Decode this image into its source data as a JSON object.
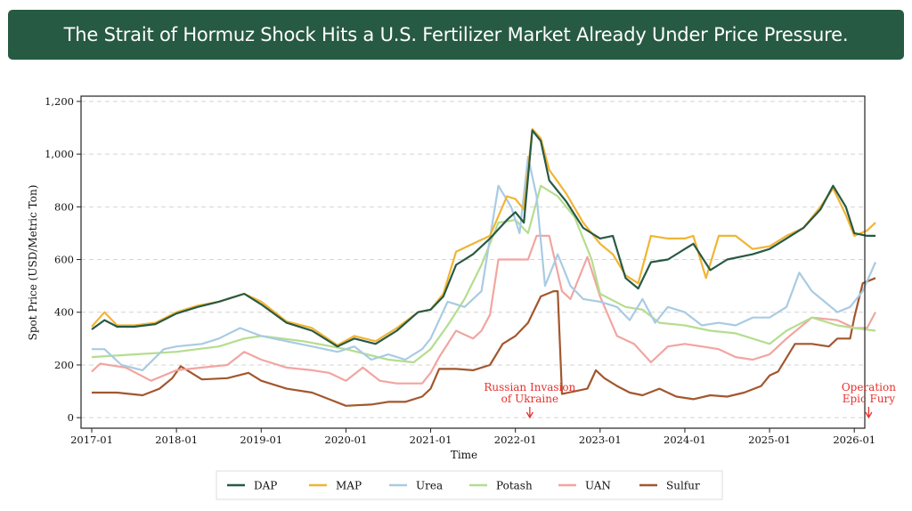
{
  "title": "The Strait of Hormuz Shock Hits a U.S. Fertilizer Market Already Under Price Pressure.",
  "chart_data": {
    "type": "line",
    "title": "The Strait of Hormuz Shock Hits a U.S. Fertilizer Market Already Under Price Pressure.",
    "xlabel": "Time",
    "ylabel": "Spot Price (USD/Metric Ton)",
    "xlim": [
      2017.0,
      2026.25
    ],
    "ylim": [
      -40,
      1220
    ],
    "yticks": [
      0,
      200,
      400,
      600,
      800,
      1000,
      1200
    ],
    "ytick_labels": [
      "0",
      "200",
      "400",
      "600",
      "800",
      "1,000",
      "1,200"
    ],
    "xticks": [
      2017,
      2018,
      2019,
      2020,
      2021,
      2022,
      2023,
      2024,
      2025,
      2026
    ],
    "xtick_labels": [
      "2017-01",
      "2018-01",
      "2019-01",
      "2020-01",
      "2021-01",
      "2022-01",
      "2023-01",
      "2024-01",
      "2025-01",
      "2026-01"
    ],
    "grid": "horizontal-dashed",
    "legend_position": "bottom-center",
    "annotations": [
      {
        "text": [
          "Russian Invasion",
          "of Ukraine"
        ],
        "x": 2022.17,
        "color": "#e8302b"
      },
      {
        "text": [
          "Operation",
          "Epic Fury"
        ],
        "x": 2026.17,
        "color": "#e8302b"
      }
    ],
    "series": [
      {
        "name": "DAP",
        "color": "#275a43",
        "x": [
          2017.0,
          2017.15,
          2017.3,
          2017.5,
          2017.75,
          2018.0,
          2018.25,
          2018.5,
          2018.8,
          2019.0,
          2019.3,
          2019.6,
          2019.9,
          2020.1,
          2020.35,
          2020.6,
          2020.85,
          2021.0,
          2021.15,
          2021.3,
          2021.5,
          2021.7,
          2021.9,
          2022.0,
          2022.1,
          2022.2,
          2022.3,
          2022.4,
          2022.6,
          2022.8,
          2023.0,
          2023.15,
          2023.3,
          2023.45,
          2023.6,
          2023.8,
          2024.0,
          2024.1,
          2024.3,
          2024.5,
          2024.8,
          2025.0,
          2025.2,
          2025.4,
          2025.6,
          2025.75,
          2025.9,
          2026.0,
          2026.15,
          2026.25
        ],
        "values": [
          335,
          370,
          345,
          345,
          355,
          395,
          420,
          440,
          470,
          430,
          360,
          330,
          270,
          300,
          280,
          330,
          400,
          410,
          460,
          580,
          620,
          680,
          750,
          780,
          740,
          1090,
          1050,
          900,
          820,
          720,
          680,
          690,
          530,
          490,
          590,
          600,
          640,
          660,
          560,
          600,
          620,
          640,
          680,
          720,
          790,
          880,
          800,
          700,
          690,
          690
        ]
      },
      {
        "name": "MAP",
        "color": "#f1b434",
        "x": [
          2017.0,
          2017.15,
          2017.3,
          2017.5,
          2017.75,
          2018.0,
          2018.25,
          2018.5,
          2018.8,
          2019.0,
          2019.3,
          2019.6,
          2019.9,
          2020.1,
          2020.35,
          2020.6,
          2020.85,
          2021.0,
          2021.15,
          2021.3,
          2021.5,
          2021.7,
          2021.9,
          2022.0,
          2022.1,
          2022.2,
          2022.3,
          2022.4,
          2022.6,
          2022.8,
          2023.0,
          2023.15,
          2023.3,
          2023.45,
          2023.6,
          2023.8,
          2024.0,
          2024.1,
          2024.25,
          2024.4,
          2024.6,
          2024.8,
          2025.0,
          2025.2,
          2025.4,
          2025.6,
          2025.75,
          2025.9,
          2026.0,
          2026.15,
          2026.25
        ],
        "values": [
          345,
          400,
          350,
          350,
          360,
          400,
          425,
          440,
          470,
          440,
          365,
          340,
          275,
          310,
          290,
          340,
          400,
          410,
          470,
          630,
          660,
          690,
          840,
          830,
          790,
          1095,
          1060,
          940,
          850,
          740,
          660,
          620,
          540,
          510,
          690,
          680,
          680,
          690,
          530,
          690,
          690,
          640,
          650,
          690,
          720,
          800,
          870,
          770,
          690,
          710,
          740
        ]
      },
      {
        "name": "Urea",
        "color": "#a9cbe3",
        "x": [
          2017.0,
          2017.15,
          2017.35,
          2017.6,
          2017.85,
          2018.0,
          2018.3,
          2018.5,
          2018.75,
          2019.0,
          2019.3,
          2019.6,
          2019.9,
          2020.1,
          2020.3,
          2020.5,
          2020.7,
          2020.9,
          2021.0,
          2021.2,
          2021.4,
          2021.6,
          2021.8,
          2021.95,
          2022.05,
          2022.15,
          2022.25,
          2022.35,
          2022.5,
          2022.65,
          2022.8,
          2023.0,
          2023.2,
          2023.35,
          2023.5,
          2023.65,
          2023.8,
          2024.0,
          2024.2,
          2024.4,
          2024.6,
          2024.8,
          2025.0,
          2025.2,
          2025.35,
          2025.5,
          2025.65,
          2025.8,
          2025.95,
          2026.1,
          2026.25
        ],
        "values": [
          260,
          260,
          200,
          180,
          260,
          270,
          280,
          300,
          340,
          310,
          290,
          270,
          250,
          270,
          220,
          240,
          220,
          260,
          300,
          440,
          420,
          480,
          880,
          800,
          700,
          990,
          840,
          500,
          620,
          500,
          450,
          440,
          420,
          370,
          450,
          360,
          420,
          400,
          350,
          360,
          350,
          380,
          380,
          420,
          550,
          480,
          440,
          400,
          420,
          480,
          590
        ]
      },
      {
        "name": "Potash",
        "color": "#b5dd8e",
        "x": [
          2017.0,
          2017.5,
          2018.0,
          2018.5,
          2018.8,
          2019.0,
          2019.5,
          2020.0,
          2020.5,
          2020.8,
          2021.0,
          2021.2,
          2021.4,
          2021.6,
          2021.8,
          2022.0,
          2022.15,
          2022.3,
          2022.5,
          2022.7,
          2022.9,
          2023.0,
          2023.3,
          2023.5,
          2023.7,
          2024.0,
          2024.3,
          2024.6,
          2025.0,
          2025.2,
          2025.5,
          2025.8,
          2026.0,
          2026.25
        ],
        "values": [
          230,
          240,
          250,
          270,
          300,
          310,
          290,
          260,
          220,
          210,
          260,
          350,
          450,
          580,
          740,
          750,
          700,
          880,
          840,
          760,
          600,
          470,
          420,
          410,
          360,
          350,
          330,
          320,
          280,
          330,
          380,
          350,
          340,
          330
        ]
      },
      {
        "name": "UAN",
        "color": "#f2a5a0",
        "x": [
          2017.0,
          2017.1,
          2017.4,
          2017.7,
          2018.0,
          2018.3,
          2018.6,
          2018.8,
          2019.0,
          2019.3,
          2019.6,
          2019.8,
          2020.0,
          2020.2,
          2020.4,
          2020.6,
          2020.9,
          2021.0,
          2021.1,
          2021.3,
          2021.5,
          2021.6,
          2021.7,
          2021.8,
          2022.0,
          2022.15,
          2022.25,
          2022.4,
          2022.55,
          2022.65,
          2022.85,
          2023.0,
          2023.2,
          2023.4,
          2023.6,
          2023.8,
          2024.0,
          2024.2,
          2024.4,
          2024.6,
          2024.8,
          2025.0,
          2025.2,
          2025.5,
          2025.8,
          2026.0,
          2026.15,
          2026.25
        ],
        "values": [
          175,
          205,
          190,
          140,
          180,
          190,
          200,
          250,
          220,
          190,
          180,
          170,
          140,
          190,
          140,
          130,
          130,
          170,
          230,
          330,
          300,
          330,
          390,
          600,
          600,
          600,
          690,
          690,
          480,
          450,
          610,
          460,
          310,
          280,
          210,
          270,
          280,
          270,
          260,
          230,
          220,
          240,
          300,
          380,
          370,
          340,
          340,
          400
        ]
      },
      {
        "name": "Sulfur",
        "color": "#a2572e",
        "x": [
          2017.0,
          2017.3,
          2017.6,
          2017.8,
          2017.95,
          2018.05,
          2018.3,
          2018.6,
          2018.85,
          2019.0,
          2019.3,
          2019.6,
          2019.8,
          2020.0,
          2020.3,
          2020.5,
          2020.7,
          2020.9,
          2021.0,
          2021.1,
          2021.3,
          2021.5,
          2021.7,
          2021.85,
          2022.0,
          2022.15,
          2022.3,
          2022.45,
          2022.5,
          2022.55,
          2022.7,
          2022.85,
          2022.95,
          2023.05,
          2023.2,
          2023.35,
          2023.5,
          2023.7,
          2023.9,
          2024.1,
          2024.3,
          2024.5,
          2024.7,
          2024.9,
          2025.0,
          2025.1,
          2025.3,
          2025.5,
          2025.7,
          2025.8,
          2025.95,
          2026.0,
          2026.1,
          2026.25
        ],
        "values": [
          95,
          95,
          85,
          110,
          150,
          195,
          145,
          150,
          170,
          140,
          110,
          95,
          70,
          45,
          50,
          60,
          60,
          80,
          110,
          185,
          185,
          180,
          200,
          280,
          310,
          360,
          460,
          480,
          480,
          90,
          100,
          110,
          180,
          150,
          120,
          95,
          85,
          110,
          80,
          70,
          85,
          80,
          95,
          120,
          160,
          175,
          280,
          280,
          270,
          300,
          300,
          380,
          510,
          530
        ]
      }
    ]
  }
}
